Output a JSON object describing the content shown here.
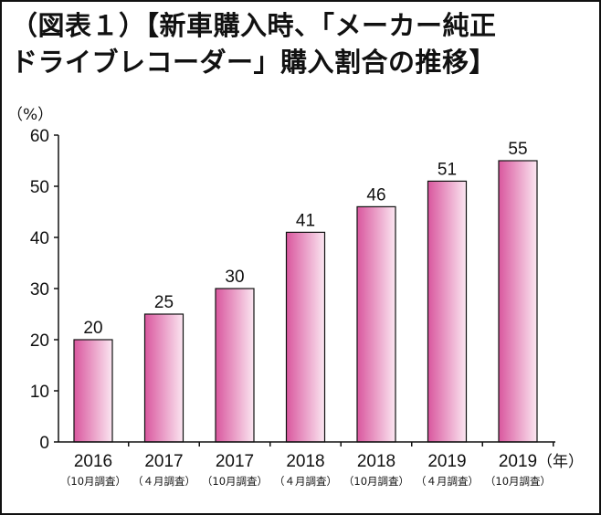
{
  "title": {
    "line1": "（図表１）【新車購入時、「メーカー純正",
    "line2": "ドライブレコーダー」購入割合の推移】"
  },
  "chart_data": {
    "type": "bar",
    "title": "（図表１）【新車購入時、「メーカー純正ドライブレコーダー」購入割合の推移】",
    "ylabel": "（%）",
    "xlabel": "（年）",
    "categories": [
      {
        "year": "2016",
        "sub": "（10月調査）"
      },
      {
        "year": "2017",
        "sub": "（４月調査）"
      },
      {
        "year": "2017",
        "sub": "（10月調査）"
      },
      {
        "year": "2018",
        "sub": "（４月調査）"
      },
      {
        "year": "2018",
        "sub": "（10月調査）"
      },
      {
        "year": "2019",
        "sub": "（４月調査）"
      },
      {
        "year": "2019",
        "sub": "（10月調査）"
      }
    ],
    "values": [
      20,
      25,
      30,
      41,
      46,
      51,
      55
    ],
    "ylim": [
      0,
      60
    ],
    "yticks": [
      0,
      10,
      20,
      30,
      40,
      50,
      60
    ],
    "grid": false,
    "bar_gradient": [
      "#d9579e",
      "#fbe6f1"
    ],
    "bar_outline": "#111111"
  }
}
